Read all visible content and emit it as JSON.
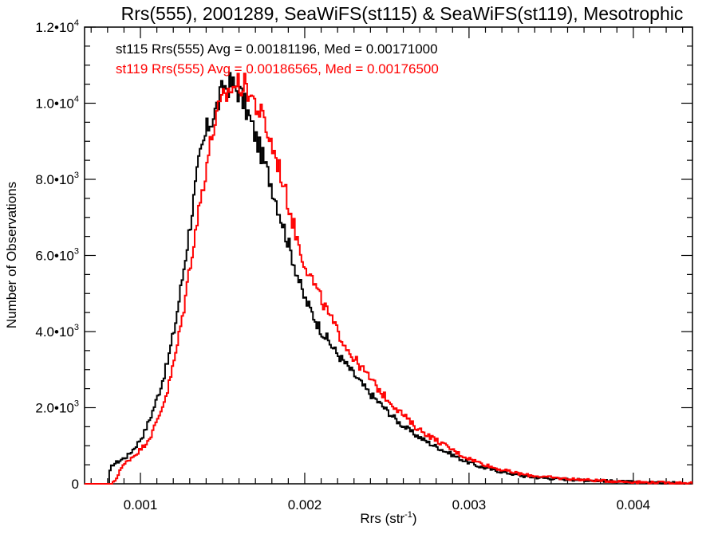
{
  "chart_data": {
    "type": "histogram-step",
    "title": "Rrs(555), 2001289, SeaWiFS(st115) & SeaWiFS(st119), Mesotrophic",
    "xlabel": "Rrs (str",
    "xlabel_sup": "-1",
    "xlabel_close": ")",
    "ylabel": "Number of Observations",
    "xlim": [
      0.00066,
      0.00436
    ],
    "ylim": [
      0,
      12000
    ],
    "bin_width": 1e-05,
    "x_major_ticks": [
      0.001,
      0.002,
      0.003,
      0.004
    ],
    "x_tick_labels": [
      "0.001",
      "0.002",
      "0.003",
      "0.004"
    ],
    "x_minor_step": 0.0001,
    "y_major_ticks": [
      0,
      2000,
      4000,
      6000,
      8000,
      10000,
      12000
    ],
    "y_tick_labels": [
      {
        "mant": "0",
        "exp": ""
      },
      {
        "mant": "2.0•10",
        "exp": "3"
      },
      {
        "mant": "4.0•10",
        "exp": "3"
      },
      {
        "mant": "6.0•10",
        "exp": "3"
      },
      {
        "mant": "8.0•10",
        "exp": "3"
      },
      {
        "mant": "1.0•10",
        "exp": "4"
      },
      {
        "mant": "1.2•10",
        "exp": "4"
      }
    ],
    "y_minor_step": 500,
    "grid": false,
    "legend_position": "top-left",
    "series": [
      {
        "name": "st115",
        "label": "st115 Rrs(555) Avg = 0.00181196, Med = 0.00171000",
        "color": "#000000",
        "avg": 0.00181196,
        "median": 0.00171,
        "envelope": [
          [
            0.000806,
            0
          ],
          [
            0.000816,
            356
          ],
          [
            0.00083,
            503
          ],
          [
            0.000874,
            607
          ],
          [
            0.000922,
            733
          ],
          [
            0.000971,
            984
          ],
          [
            0.001019,
            1298
          ],
          [
            0.001068,
            1822
          ],
          [
            0.001117,
            2450
          ],
          [
            0.001165,
            3183
          ],
          [
            0.001214,
            4230
          ],
          [
            0.001262,
            5591
          ],
          [
            0.001311,
            7057
          ],
          [
            0.001359,
            8523
          ],
          [
            0.001408,
            9361
          ],
          [
            0.001456,
            9780
          ],
          [
            0.001505,
            10408
          ],
          [
            0.001553,
            10513
          ],
          [
            0.001602,
            10303
          ],
          [
            0.00165,
            9780
          ],
          [
            0.001699,
            9152
          ],
          [
            0.001748,
            8523
          ],
          [
            0.001796,
            7895
          ],
          [
            0.001845,
            7162
          ],
          [
            0.001893,
            6429
          ],
          [
            0.001942,
            5696
          ],
          [
            0.00199,
            4963
          ],
          [
            0.002087,
            4126
          ],
          [
            0.002184,
            3497
          ],
          [
            0.002282,
            2974
          ],
          [
            0.002379,
            2450
          ],
          [
            0.002476,
            2031
          ],
          [
            0.002573,
            1613
          ],
          [
            0.00267,
            1298
          ],
          [
            0.002767,
            1047
          ],
          [
            0.002864,
            838
          ],
          [
            0.002961,
            628
          ],
          [
            0.003058,
            461
          ],
          [
            0.003155,
            356
          ],
          [
            0.003252,
            272
          ],
          [
            0.00335,
            188
          ],
          [
            0.003544,
            126
          ],
          [
            0.003786,
            84
          ],
          [
            0.004029,
            42
          ],
          [
            0.004359,
            21
          ]
        ]
      },
      {
        "name": "st119",
        "label": "st119 Rrs(555) Avg = 0.00186565, Med = 0.00176500",
        "color": "#ff0000",
        "avg": 0.00186565,
        "median": 0.001765,
        "envelope": [
          [
            0.00083,
            0
          ],
          [
            0.000855,
            147
          ],
          [
            0.000874,
            356
          ],
          [
            0.000922,
            607
          ],
          [
            0.000971,
            775
          ],
          [
            0.001019,
            984
          ],
          [
            0.001068,
            1298
          ],
          [
            0.001117,
            1822
          ],
          [
            0.001165,
            2450
          ],
          [
            0.001214,
            3392
          ],
          [
            0.001262,
            4544
          ],
          [
            0.001311,
            6010
          ],
          [
            0.001359,
            7266
          ],
          [
            0.001408,
            8523
          ],
          [
            0.001456,
            9570
          ],
          [
            0.001505,
            10094
          ],
          [
            0.001553,
            10408
          ],
          [
            0.001602,
            10513
          ],
          [
            0.00165,
            10408
          ],
          [
            0.001699,
            9989
          ],
          [
            0.001748,
            9570
          ],
          [
            0.001796,
            8942
          ],
          [
            0.001845,
            8314
          ],
          [
            0.001893,
            7476
          ],
          [
            0.001942,
            6638
          ],
          [
            0.00199,
            5905
          ],
          [
            0.002087,
            4963
          ],
          [
            0.002184,
            4126
          ],
          [
            0.002282,
            3392
          ],
          [
            0.002379,
            2869
          ],
          [
            0.002476,
            2345
          ],
          [
            0.002573,
            1927
          ],
          [
            0.00267,
            1508
          ],
          [
            0.002767,
            1236
          ],
          [
            0.002864,
            984
          ],
          [
            0.002961,
            733
          ],
          [
            0.003058,
            566
          ],
          [
            0.003155,
            419
          ],
          [
            0.003252,
            314
          ],
          [
            0.00335,
            230
          ],
          [
            0.003544,
            147
          ],
          [
            0.003786,
            84
          ],
          [
            0.004029,
            42
          ],
          [
            0.004359,
            21
          ]
        ]
      }
    ]
  }
}
